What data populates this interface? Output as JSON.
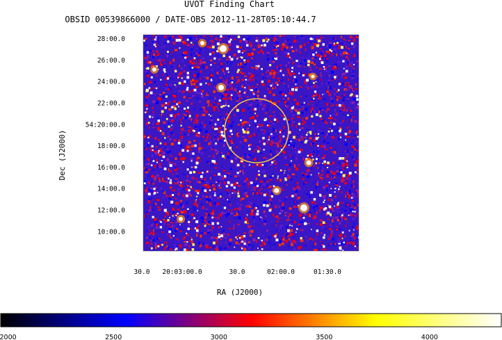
{
  "chart_data": {
    "type": "heatmap",
    "title": "UVOT Finding Chart",
    "subtitle": "OBSID 00539866000 / DATE-OBS 2012-11-28T05:10:44.7",
    "xlabel": "RA (J2000)",
    "ylabel": "Dec (J2000)",
    "x_ticks": [
      "30.0",
      "20:03:00.0",
      "30.0",
      "02:00.0",
      "01:30.0"
    ],
    "y_ticks": [
      "28:00.0",
      "26:00.0",
      "24:00.0",
      "22:00.0",
      "54:20:00.0",
      "18:00.0",
      "16:00.0",
      "14:00.0",
      "12:00.0",
      "10:00.0"
    ],
    "y_values_arcmin": [
      28,
      26,
      24,
      22,
      20,
      18,
      16,
      14,
      12,
      10
    ],
    "ylim_arcmin": [
      8.2,
      28.4
    ],
    "colorbar": {
      "ticks": [
        "2000",
        "2500",
        "3000",
        "3500",
        "4000"
      ],
      "values": [
        2000,
        2500,
        3000,
        3500,
        4000
      ],
      "range": [
        1965,
        4340
      ],
      "colormap": [
        "#000000",
        "#0000ff",
        "#ff0000",
        "#ffff00",
        "#ffffff"
      ]
    },
    "target_circle": {
      "color": "#ffcc33"
    }
  }
}
